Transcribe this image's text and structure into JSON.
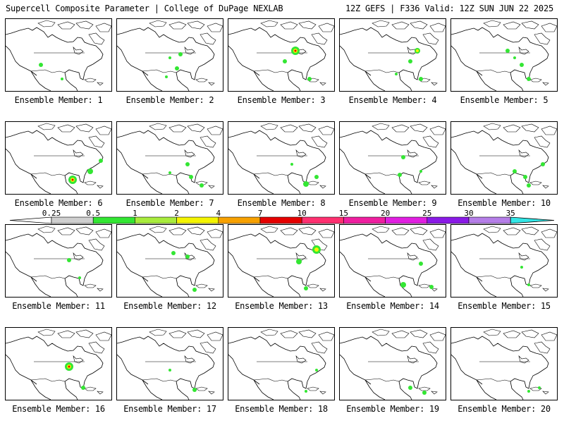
{
  "header": {
    "left": "Supercell Composite Parameter | College of DuPage NEXLAB",
    "right": "12Z GEFS | F336 Valid: 12Z SUN JUN 22 2025"
  },
  "legend": {
    "labels": [
      "0.25",
      "0.5",
      "1",
      "2",
      "4",
      "7",
      "10",
      "15",
      "20",
      "25",
      "30",
      "35"
    ],
    "colors": [
      "#cfcfcf",
      "#33e633",
      "#a8ec3c",
      "#f4f400",
      "#f7a100",
      "#e60000",
      "#ff3070",
      "#ef1fa0",
      "#e11fe1",
      "#8a1ae6",
      "#b57ee8",
      "#33e6e6"
    ]
  },
  "panels": [
    {
      "label": "Ensemble Member: 1",
      "blobs": [
        [
          50,
          65,
          3,
          "#33e633"
        ],
        [
          80,
          85,
          2,
          "#33e633"
        ]
      ]
    },
    {
      "label": "Ensemble Member: 2",
      "blobs": [
        [
          90,
          50,
          3,
          "#33e633"
        ],
        [
          85,
          70,
          3,
          "#33e633"
        ],
        [
          70,
          82,
          2,
          "#33e633"
        ],
        [
          75,
          55,
          2,
          "#33e633"
        ]
      ]
    },
    {
      "label": "Ensemble Member: 3",
      "blobs": [
        [
          95,
          45,
          6,
          "#33e633"
        ],
        [
          95,
          45,
          3,
          "#f4f400"
        ],
        [
          95,
          45,
          1.5,
          "#e60000"
        ],
        [
          80,
          60,
          3,
          "#33e633"
        ],
        [
          115,
          85,
          3,
          "#33e633"
        ]
      ]
    },
    {
      "label": "Ensemble Member: 4",
      "blobs": [
        [
          110,
          45,
          4,
          "#33e633"
        ],
        [
          110,
          45,
          2,
          "#f4f400"
        ],
        [
          100,
          60,
          3,
          "#33e633"
        ],
        [
          115,
          85,
          3,
          "#33e633"
        ],
        [
          80,
          78,
          2,
          "#33e633"
        ]
      ]
    },
    {
      "label": "Ensemble Member: 5",
      "blobs": [
        [
          80,
          45,
          3,
          "#33e633"
        ],
        [
          100,
          65,
          3,
          "#33e633"
        ],
        [
          110,
          85,
          3,
          "#33e633"
        ],
        [
          90,
          55,
          2,
          "#33e633"
        ]
      ]
    },
    {
      "label": "Ensemble Member: 6",
      "blobs": [
        [
          95,
          82,
          6,
          "#33e633"
        ],
        [
          95,
          82,
          3,
          "#f4f400"
        ],
        [
          95,
          82,
          1.5,
          "#e60000"
        ],
        [
          120,
          70,
          4,
          "#33e633"
        ],
        [
          135,
          55,
          3,
          "#33e633"
        ]
      ]
    },
    {
      "label": "Ensemble Member: 7",
      "blobs": [
        [
          100,
          60,
          3,
          "#33e633"
        ],
        [
          105,
          78,
          3,
          "#33e633"
        ],
        [
          120,
          90,
          3,
          "#33e633"
        ],
        [
          75,
          72,
          2,
          "#33e633"
        ]
      ]
    },
    {
      "label": "Ensemble Member: 8",
      "blobs": [
        [
          90,
          60,
          2,
          "#33e633"
        ],
        [
          110,
          88,
          4,
          "#33e633"
        ],
        [
          125,
          78,
          3,
          "#33e633"
        ]
      ]
    },
    {
      "label": "Ensemble Member: 9",
      "blobs": [
        [
          90,
          50,
          3,
          "#33e633"
        ],
        [
          85,
          75,
          3,
          "#33e633"
        ],
        [
          115,
          70,
          2,
          "#33e633"
        ]
      ]
    },
    {
      "label": "Ensemble Member: 10",
      "blobs": [
        [
          90,
          70,
          3,
          "#33e633"
        ],
        [
          105,
          78,
          3,
          "#33e633"
        ],
        [
          130,
          60,
          3,
          "#33e633"
        ],
        [
          110,
          90,
          3,
          "#33e633"
        ]
      ]
    },
    {
      "label": "Ensemble Member: 11",
      "blobs": [
        [
          90,
          50,
          3,
          "#33e633"
        ],
        [
          105,
          75,
          2,
          "#33e633"
        ]
      ]
    },
    {
      "label": "Ensemble Member: 12",
      "blobs": [
        [
          80,
          40,
          3,
          "#33e633"
        ],
        [
          100,
          45,
          3,
          "#33e633"
        ],
        [
          110,
          92,
          3,
          "#33e633"
        ]
      ]
    },
    {
      "label": "Ensemble Member: 13",
      "blobs": [
        [
          125,
          35,
          6,
          "#33e633"
        ],
        [
          125,
          35,
          3,
          "#f4f400"
        ],
        [
          100,
          52,
          4,
          "#33e633"
        ],
        [
          110,
          90,
          3,
          "#33e633"
        ]
      ]
    },
    {
      "label": "Ensemble Member: 14",
      "blobs": [
        [
          115,
          55,
          3,
          "#33e633"
        ],
        [
          90,
          85,
          4,
          "#33e633"
        ],
        [
          130,
          88,
          3,
          "#33e633"
        ]
      ]
    },
    {
      "label": "Ensemble Member: 15",
      "blobs": [
        [
          100,
          60,
          2,
          "#33e633"
        ],
        [
          110,
          85,
          2,
          "#33e633"
        ]
      ]
    },
    {
      "label": "Ensemble Member: 16",
      "blobs": [
        [
          90,
          55,
          6,
          "#33e633"
        ],
        [
          90,
          55,
          3,
          "#f4f400"
        ],
        [
          90,
          55,
          1.5,
          "#e60000"
        ],
        [
          110,
          85,
          3,
          "#33e633"
        ]
      ]
    },
    {
      "label": "Ensemble Member: 17",
      "blobs": [
        [
          75,
          60,
          2,
          "#33e633"
        ],
        [
          110,
          88,
          3,
          "#33e633"
        ]
      ]
    },
    {
      "label": "Ensemble Member: 18",
      "blobs": [
        [
          110,
          90,
          2,
          "#33e633"
        ],
        [
          125,
          60,
          2,
          "#33e633"
        ]
      ]
    },
    {
      "label": "Ensemble Member: 19",
      "blobs": [
        [
          100,
          85,
          3,
          "#33e633"
        ],
        [
          120,
          92,
          3,
          "#33e633"
        ]
      ]
    },
    {
      "label": "Ensemble Member: 20",
      "blobs": [
        [
          110,
          90,
          2,
          "#33e633"
        ],
        [
          125,
          85,
          2,
          "#33e633"
        ]
      ]
    }
  ]
}
